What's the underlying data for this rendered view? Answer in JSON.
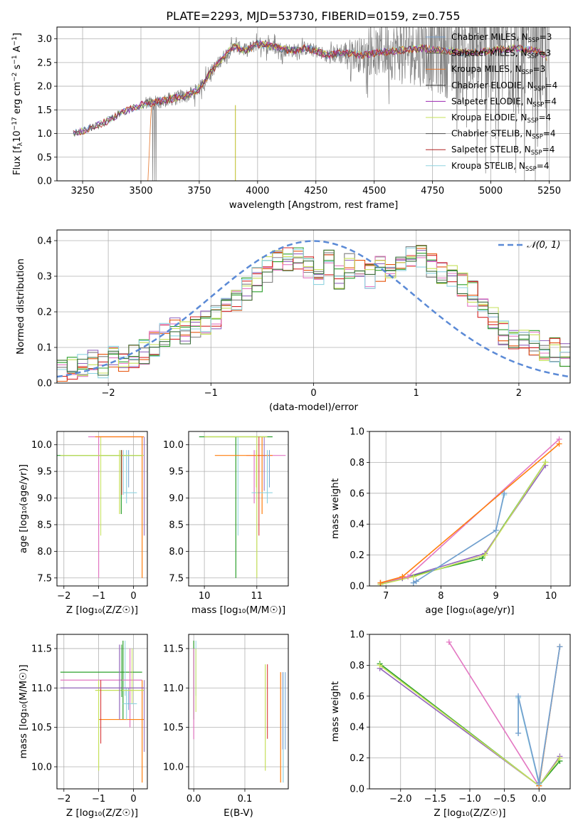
{
  "figure_title": "PLATE=2293, MJD=53730, FIBERID=0159, z=0.755",
  "colors": {
    "palette": [
      "#729ece",
      "#9467bd",
      "#ff7f0e",
      "#2ca02c",
      "#d62728",
      "#e377c2",
      "#7f7f7f",
      "#bcbd22",
      "#17becf",
      "#6baed6",
      "#e6550d",
      "#c7e9c0"
    ],
    "spectrum_gray": "#7f7f7f",
    "normal_curve": "#5b8ad6",
    "grid": "#b0b0b0"
  },
  "legend_models": [
    {
      "label": "Chabrier MILES, N",
      "sub": "SSP",
      "tail": "=3",
      "color": "#729ece"
    },
    {
      "label": "Salpeter MILES, N",
      "sub": "SSP",
      "tail": "=3",
      "color": "#555555"
    },
    {
      "label": "Kroupa MILES, N",
      "sub": "SSP",
      "tail": "=3",
      "color": "#e6772e"
    },
    {
      "label": "Chabrier ELODIE, N",
      "sub": "SSP",
      "tail": "=4",
      "color": "#3b3b3b"
    },
    {
      "label": "Salpeter ELODIE, N",
      "sub": "SSP",
      "tail": "=4",
      "color": "#9c27b0"
    },
    {
      "label": "Kroupa ELODIE, N",
      "sub": "SSP",
      "tail": "=4",
      "color": "#c6e05a"
    },
    {
      "label": "Chabrier STELIB, N",
      "sub": "SSP",
      "tail": "=4",
      "color": "#555555"
    },
    {
      "label": "Salpeter STELIB, N",
      "sub": "SSP",
      "tail": "=4",
      "color": "#b22222"
    },
    {
      "label": "Kroupa STELIB, N",
      "sub": "SSP",
      "tail": "=4",
      "color": "#8fd3e0"
    }
  ],
  "chart_data": [
    {
      "id": "spectrum",
      "type": "line",
      "xlabel": "wavelength [Angstrom, rest frame]",
      "ylabel_parts": [
        "Flux [f",
        "λ",
        "10",
        "−17",
        " erg cm",
        "−2",
        " s",
        "−1",
        " A",
        "−1",
        "]"
      ],
      "xlim": [
        3140,
        5340
      ],
      "ylim": [
        0,
        3.25
      ],
      "xticks": [
        3250,
        3500,
        3750,
        4000,
        4250,
        4500,
        4750,
        5000,
        5250
      ],
      "yticks": [
        0.0,
        0.5,
        1.0,
        1.5,
        2.0,
        2.5,
        3.0
      ],
      "model_continuum": [
        [
          3210,
          1.0
        ],
        [
          3250,
          1.05
        ],
        [
          3300,
          1.15
        ],
        [
          3350,
          1.25
        ],
        [
          3400,
          1.4
        ],
        [
          3450,
          1.5
        ],
        [
          3500,
          1.6
        ],
        [
          3550,
          1.65
        ],
        [
          3600,
          1.7
        ],
        [
          3650,
          1.75
        ],
        [
          3700,
          1.8
        ],
        [
          3750,
          1.95
        ],
        [
          3800,
          2.3
        ],
        [
          3850,
          2.6
        ],
        [
          3900,
          2.85
        ],
        [
          3950,
          2.75
        ],
        [
          4000,
          2.9
        ],
        [
          4050,
          2.85
        ],
        [
          4100,
          2.8
        ],
        [
          4150,
          2.75
        ],
        [
          4200,
          2.8
        ],
        [
          4250,
          2.75
        ],
        [
          4300,
          2.65
        ],
        [
          4350,
          2.7
        ],
        [
          4400,
          2.7
        ],
        [
          4450,
          2.65
        ],
        [
          4500,
          2.7
        ],
        [
          4600,
          2.75
        ],
        [
          4700,
          2.8
        ],
        [
          4800,
          2.75
        ],
        [
          4900,
          2.7
        ],
        [
          5000,
          2.75
        ],
        [
          5100,
          2.8
        ],
        [
          5200,
          2.75
        ],
        [
          5240,
          2.6
        ]
      ],
      "data_start_A": 3520,
      "data_end_A": 5250
    },
    {
      "id": "residuals",
      "type": "histogram",
      "xlabel": "(data-model)/error",
      "ylabel": "Normed distribution",
      "xlim": [
        -2.5,
        2.5
      ],
      "ylim": [
        0,
        0.43
      ],
      "xticks": [
        -2,
        -1,
        0,
        1,
        2
      ],
      "yticks": [
        0.0,
        0.1,
        0.2,
        0.3,
        0.4
      ],
      "legend": "𝒩(0, 1)",
      "bin_start": -2.5,
      "bin_width": 0.1,
      "base_heights": [
        0.03,
        0.04,
        0.05,
        0.06,
        0.05,
        0.07,
        0.07,
        0.08,
        0.09,
        0.11,
        0.13,
        0.15,
        0.14,
        0.16,
        0.17,
        0.18,
        0.22,
        0.24,
        0.27,
        0.29,
        0.32,
        0.34,
        0.35,
        0.35,
        0.33,
        0.31,
        0.34,
        0.3,
        0.33,
        0.31,
        0.3,
        0.32,
        0.31,
        0.33,
        0.36,
        0.35,
        0.33,
        0.31,
        0.3,
        0.28,
        0.25,
        0.22,
        0.18,
        0.14,
        0.12,
        0.12,
        0.11,
        0.1,
        0.09,
        0.08
      ],
      "normal": {
        "mu": 0,
        "sigma": 1
      }
    },
    {
      "id": "age_vs_Z",
      "type": "errorbar",
      "xlabel": "Z [log₁₀(Z/Z☉)]",
      "ylabel": "age  [log₁₀(age/yr)]",
      "xlim": [
        -2.2,
        0.4
      ],
      "ylim": [
        7.35,
        10.25
      ],
      "xticks": [
        -2,
        -1,
        0
      ],
      "yticks": [
        7.5,
        8.0,
        8.5,
        9.0,
        9.5,
        10.0
      ],
      "bars": [
        [
          -0.35,
          9.8,
          -2.2,
          0.25,
          8.7,
          9.9
        ],
        [
          -1.0,
          10.15,
          -1.3,
          0.25,
          7.5,
          10.15
        ],
        [
          0.25,
          10.15,
          -1.1,
          0.3,
          7.5,
          10.15
        ],
        [
          -0.2,
          9.1,
          -0.3,
          0.1,
          8.9,
          9.9
        ],
        [
          -0.4,
          9.8,
          -2.1,
          0.3,
          8.7,
          9.9
        ]
      ]
    },
    {
      "id": "age_vs_mass",
      "type": "errorbar",
      "xlabel": "mass [log₁₀(M/M☉)]",
      "ylabel": "",
      "xlim": [
        9.7,
        11.6
      ],
      "ylim": [
        7.35,
        10.25
      ],
      "xticks": [
        10,
        11
      ],
      "yticks": [
        7.5,
        8.0,
        8.5,
        9.0,
        9.5,
        10.0
      ],
      "bars": [
        [
          10.6,
          10.15,
          9.9,
          11.3,
          7.5,
          10.15
        ],
        [
          10.95,
          9.8,
          10.8,
          11.55,
          8.9,
          9.9
        ],
        [
          11.1,
          9.8,
          10.2,
          11.3,
          8.7,
          10.15
        ],
        [
          11.2,
          9.1,
          10.9,
          11.3,
          8.9,
          9.9
        ],
        [
          11.0,
          10.15,
          10.0,
          11.2,
          7.5,
          10.15
        ]
      ]
    },
    {
      "id": "massweight_vs_age",
      "type": "line",
      "xlabel": "age  [log₁₀(age/yr)]",
      "ylabel": "mass weight",
      "xlim": [
        6.7,
        10.35
      ],
      "ylim": [
        0,
        1
      ],
      "xticks": [
        7,
        8,
        9,
        10
      ],
      "yticks": [
        0.0,
        0.2,
        0.4,
        0.6,
        0.8,
        1.0
      ],
      "series": [
        {
          "color": "#2ca02c",
          "x": [
            6.9,
            7.3,
            8.75,
            9.9
          ],
          "y": [
            0.02,
            0.05,
            0.18,
            0.8
          ]
        },
        {
          "color": "#9467bd",
          "x": [
            6.9,
            7.3,
            8.8,
            9.9
          ],
          "y": [
            0.01,
            0.05,
            0.21,
            0.78
          ]
        },
        {
          "color": "#c6e05a",
          "x": [
            6.9,
            7.5,
            8.8,
            9.9
          ],
          "y": [
            0.01,
            0.06,
            0.2,
            0.8
          ]
        },
        {
          "color": "#e377c2",
          "x": [
            6.9,
            7.4,
            10.15
          ],
          "y": [
            0.02,
            0.06,
            0.95
          ]
        },
        {
          "color": "#ff7f0e",
          "x": [
            6.9,
            7.3,
            10.15
          ],
          "y": [
            0.02,
            0.06,
            0.92
          ]
        },
        {
          "color": "#8fd3e0",
          "x": [
            7.5,
            7.55,
            9.0,
            9.15
          ],
          "y": [
            0.02,
            0.03,
            0.36,
            0.59
          ]
        },
        {
          "color": "#729ece",
          "x": [
            7.5,
            7.55,
            9.0,
            9.15
          ],
          "y": [
            0.02,
            0.03,
            0.36,
            0.6
          ]
        }
      ]
    },
    {
      "id": "mass_vs_Z",
      "type": "errorbar",
      "xlabel": "Z [log₁₀(Z/Z☉)]",
      "ylabel": "mass [log₁₀(M/M☉)]",
      "xlim": [
        -2.2,
        0.4
      ],
      "ylim": [
        9.72,
        11.68
      ],
      "xticks": [
        -2,
        -1,
        0
      ],
      "yticks": [
        10.0,
        10.5,
        11.0,
        11.5
      ],
      "bars": [
        [
          -0.3,
          11.2,
          -2.1,
          0.25,
          10.6,
          11.6
        ],
        [
          -0.1,
          11.1,
          -2.1,
          0.25,
          10.5,
          11.5
        ],
        [
          0.25,
          10.6,
          -1.0,
          0.3,
          9.8,
          11.1
        ],
        [
          -0.2,
          10.8,
          -0.3,
          0.1,
          10.6,
          11.0
        ],
        [
          -1.0,
          10.97,
          -1.1,
          0.3,
          9.95,
          11.1
        ],
        [
          -0.4,
          11.0,
          -2.1,
          0.3,
          10.6,
          11.55
        ]
      ]
    },
    {
      "id": "mass_vs_EBV",
      "type": "errorbar",
      "xlabel": "E(B-V)",
      "ylabel": "",
      "xlim": [
        -0.01,
        0.185
      ],
      "ylim": [
        9.72,
        11.68
      ],
      "xticks": [
        0.0,
        0.1
      ],
      "yticks": [
        10.0,
        10.5,
        11.0,
        11.5
      ],
      "bars": [
        [
          0.0,
          11.2,
          0.0,
          0.0,
          10.6,
          11.6
        ],
        [
          0.0,
          11.0,
          0.0,
          0.0,
          10.35,
          11.5
        ],
        [
          0.17,
          10.6,
          0.17,
          0.17,
          9.8,
          11.2
        ],
        [
          0.175,
          10.6,
          0.175,
          0.175,
          9.8,
          11.2
        ],
        [
          0.14,
          10.6,
          0.14,
          0.14,
          9.95,
          11.3
        ]
      ]
    },
    {
      "id": "massweight_vs_Z",
      "type": "line",
      "xlabel": "Z [log₁₀(Z/Z☉)]",
      "ylabel": "mass weight",
      "xlim": [
        -2.45,
        0.45
      ],
      "ylim": [
        0,
        1
      ],
      "xticks": [
        -2.0,
        -1.5,
        -1.0,
        -0.5,
        0.0
      ],
      "yticks": [
        0.0,
        0.2,
        0.4,
        0.6,
        0.8,
        1.0
      ],
      "series": [
        {
          "color": "#2ca02c",
          "x": [
            -2.3,
            0.0,
            0.3
          ],
          "y": [
            0.81,
            0.02,
            0.18
          ]
        },
        {
          "color": "#9467bd",
          "x": [
            -2.3,
            0.0,
            0.3
          ],
          "y": [
            0.78,
            0.02,
            0.21
          ]
        },
        {
          "color": "#c6e05a",
          "x": [
            -2.3,
            0.0,
            0.3
          ],
          "y": [
            0.8,
            0.02,
            0.2
          ]
        },
        {
          "color": "#e377c2",
          "x": [
            -1.3,
            0.0,
            0.3
          ],
          "y": [
            0.95,
            0.02,
            0.92
          ]
        },
        {
          "color": "#ff7f0e",
          "x": [
            0.0,
            0.3
          ],
          "y": [
            0.02,
            0.92
          ]
        },
        {
          "color": "#8fd3e0",
          "x": [
            -0.3,
            -0.3,
            0.0,
            0.3
          ],
          "y": [
            0.36,
            0.59,
            0.03,
            0.92
          ]
        },
        {
          "color": "#729ece",
          "x": [
            -0.3,
            -0.3,
            0.0,
            0.3
          ],
          "y": [
            0.36,
            0.6,
            0.04,
            0.92
          ]
        }
      ]
    }
  ]
}
